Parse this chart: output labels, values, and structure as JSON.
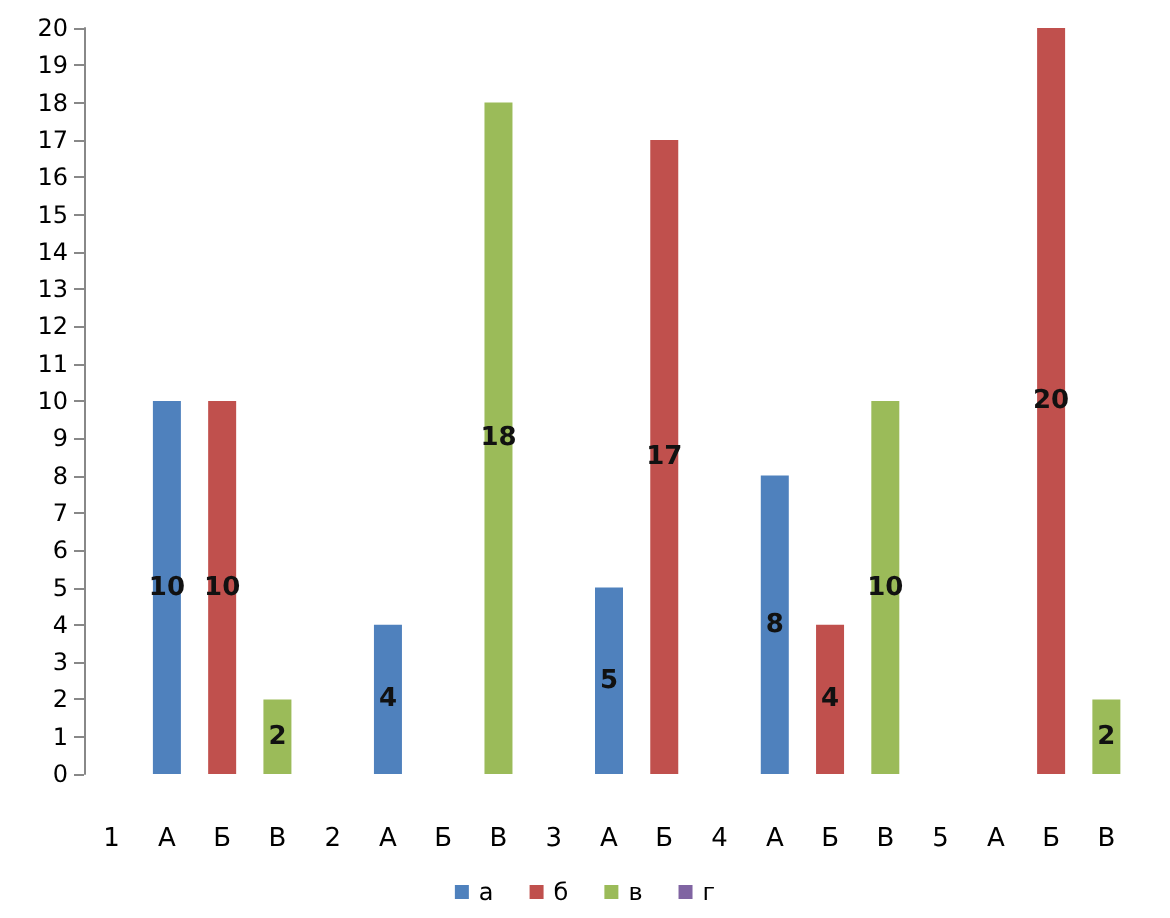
{
  "chart_data": {
    "type": "bar",
    "categories": [
      "1",
      "А",
      "Б",
      "В",
      "2",
      "А",
      "Б",
      "В",
      "3",
      "А",
      "Б",
      "4",
      "А",
      "Б",
      "В",
      "5",
      "А",
      "Б",
      "В"
    ],
    "series": [
      {
        "name": "а",
        "color": "#4f81bd",
        "values": [
          null,
          10,
          null,
          null,
          null,
          4,
          null,
          null,
          null,
          5,
          null,
          null,
          8,
          null,
          null,
          null,
          null,
          null,
          null
        ]
      },
      {
        "name": "б",
        "color": "#c0504d",
        "values": [
          null,
          null,
          10,
          null,
          null,
          null,
          null,
          null,
          null,
          null,
          17,
          null,
          null,
          4,
          null,
          null,
          null,
          20,
          null
        ]
      },
      {
        "name": "в",
        "color": "#9bbb59",
        "values": [
          null,
          null,
          null,
          2,
          null,
          null,
          null,
          18,
          null,
          null,
          null,
          null,
          null,
          null,
          10,
          null,
          null,
          null,
          2
        ]
      },
      {
        "name": "г",
        "color": "#8064a2",
        "values": [
          null,
          null,
          null,
          null,
          null,
          null,
          null,
          null,
          null,
          null,
          null,
          null,
          null,
          null,
          null,
          null,
          null,
          null,
          null
        ]
      }
    ],
    "ylim": [
      0,
      20
    ],
    "yticks": [
      0,
      1,
      2,
      3,
      4,
      5,
      6,
      7,
      8,
      9,
      10,
      11,
      12,
      13,
      14,
      15,
      16,
      17,
      18,
      19,
      20
    ],
    "data_labels": true,
    "legend": "bottom",
    "grid": false
  }
}
